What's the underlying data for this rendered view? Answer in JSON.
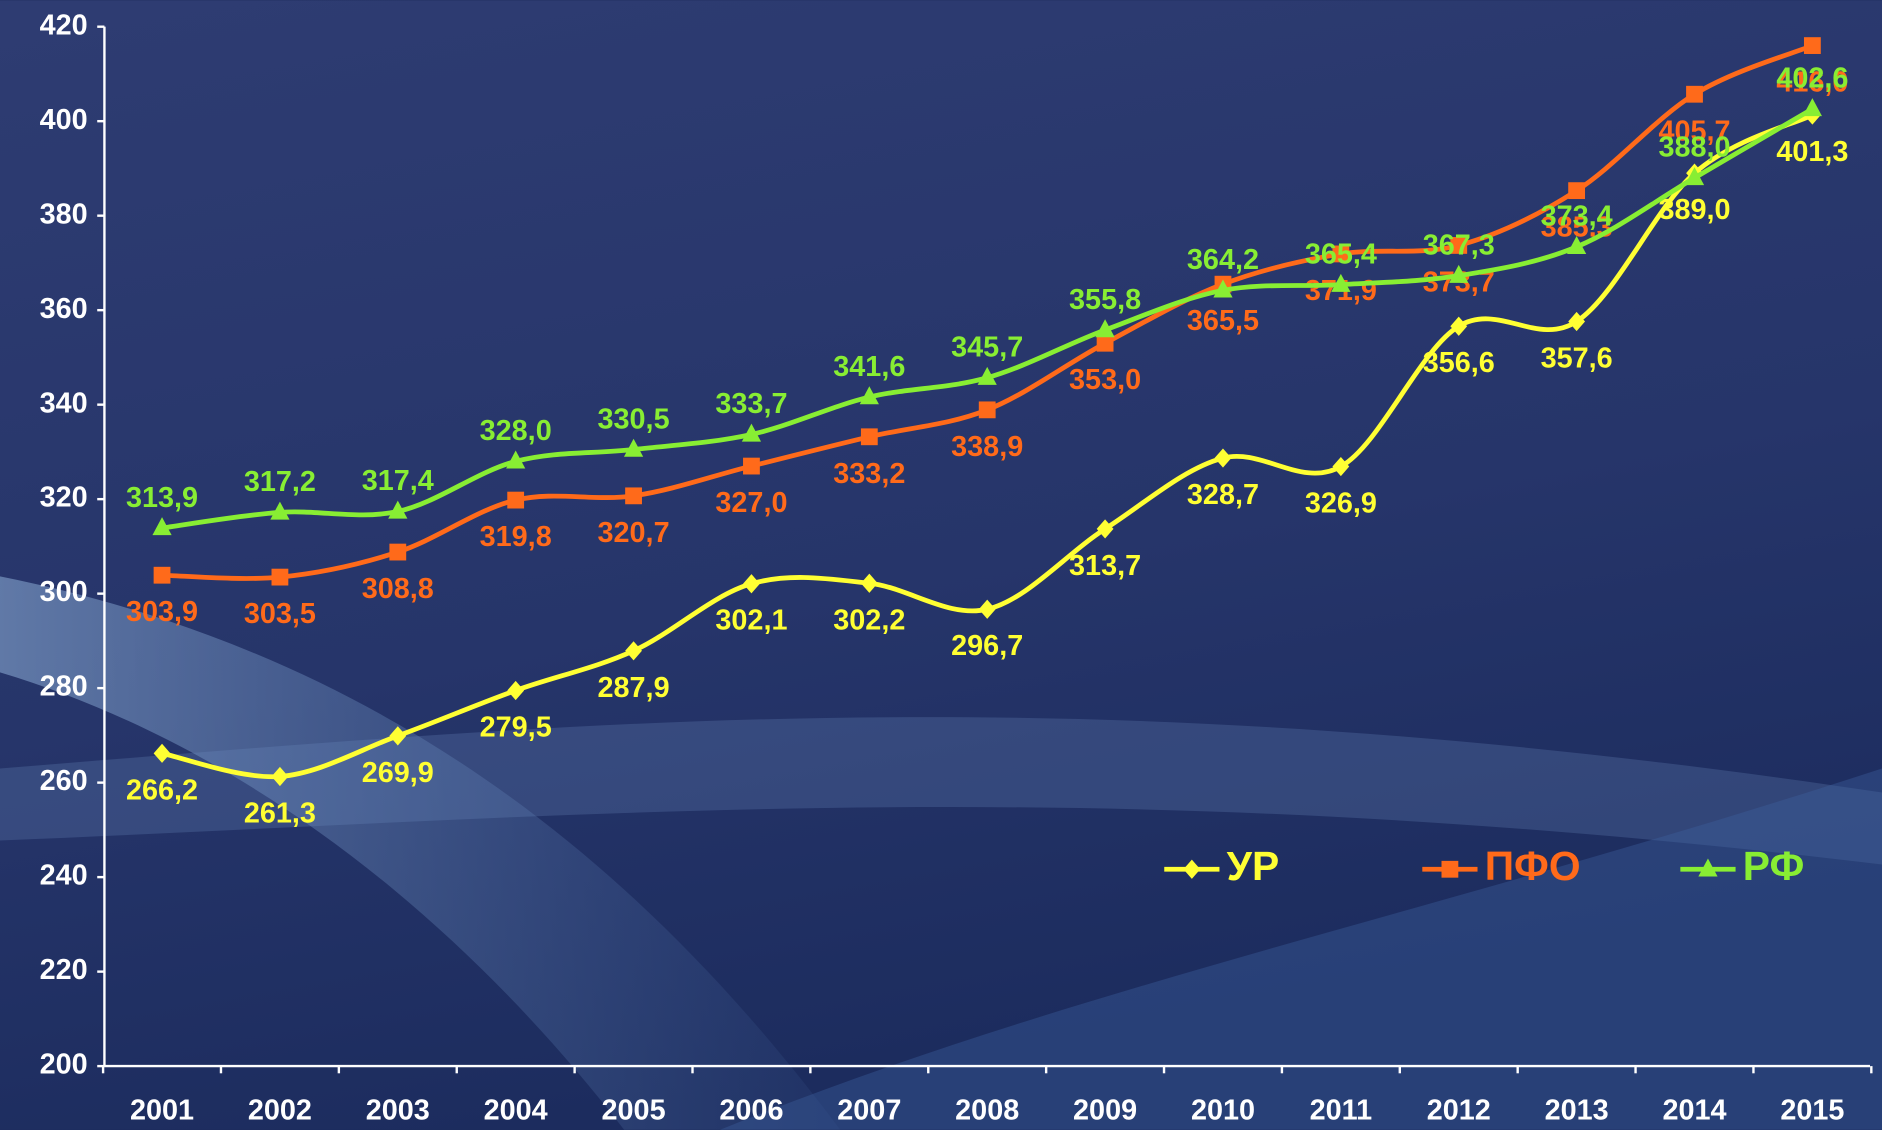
{
  "chart_data": {
    "type": "line",
    "categories": [
      "2001",
      "2002",
      "2003",
      "2004",
      "2005",
      "2006",
      "2007",
      "2008",
      "2009",
      "2010",
      "2011",
      "2012",
      "2013",
      "2014",
      "2015"
    ],
    "ylim": [
      200,
      420
    ],
    "yticks": [
      200,
      220,
      240,
      260,
      280,
      300,
      320,
      340,
      360,
      380,
      400,
      420
    ],
    "legend": "lower-right",
    "series": [
      {
        "name": "УР",
        "color": "#ffff33",
        "marker": "diamond",
        "values": [
          266.2,
          261.3,
          269.9,
          279.5,
          287.9,
          302.1,
          302.2,
          296.7,
          313.7,
          328.7,
          326.9,
          356.6,
          357.6,
          389.0,
          401.3
        ],
        "value_labels": [
          "266,2",
          "261,3",
          "269,9",
          "279,5",
          "287,9",
          "302,1",
          "302,2",
          "296,7",
          "313,7",
          "328,7",
          "326,9",
          "356,6",
          "357,6",
          "389,0",
          "401,3"
        ]
      },
      {
        "name": "ПФО",
        "color": "#ff6a1a",
        "marker": "square",
        "values": [
          303.9,
          303.5,
          308.8,
          319.8,
          320.7,
          327.0,
          333.2,
          338.9,
          353.0,
          365.5,
          371.9,
          373.7,
          385.3,
          405.7,
          416.0
        ],
        "value_labels": [
          "303,9",
          "303,5",
          "308,8",
          "319,8",
          "320,7",
          "327,0",
          "333,2",
          "338,9",
          "353,0",
          "365,5",
          "371,9",
          "373,7",
          "385,3",
          "405,7",
          "416,0"
        ]
      },
      {
        "name": "РФ",
        "color": "#88ee33",
        "marker": "triangle",
        "values": [
          313.9,
          317.2,
          317.4,
          328.0,
          330.5,
          333.7,
          341.6,
          345.7,
          355.8,
          364.2,
          365.4,
          367.3,
          373.4,
          388.0,
          402.6
        ],
        "value_labels": [
          "313,9",
          "317,2",
          "317,4",
          "328,0",
          "330,5",
          "333,7",
          "341,6",
          "345,7",
          "355,8",
          "364,2",
          "365,4",
          "367,3",
          "373,4",
          "388,0",
          "402,6"
        ]
      }
    ]
  }
}
